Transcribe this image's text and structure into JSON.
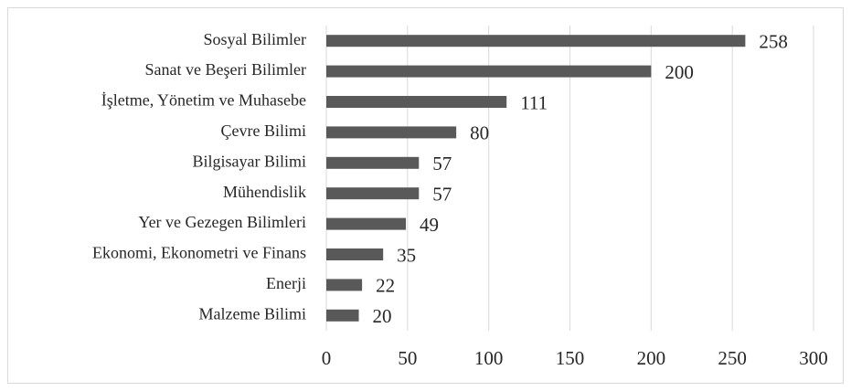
{
  "chart_data": {
    "type": "barh",
    "categories": [
      "Sosyal Bilimler",
      "Sanat ve Beşeri Bilimler",
      "İşletme, Yönetim ve Muhasebe",
      "Çevre Bilimi",
      "Bilgisayar Bilimi",
      "Mühendislik",
      "Yer ve Gezegen Bilimleri",
      "Ekonomi, Ekonometri ve Finans",
      "Enerji",
      "Malzeme Bilimi"
    ],
    "values": [
      258,
      200,
      111,
      80,
      57,
      57,
      49,
      35,
      22,
      20
    ],
    "color": "#595959",
    "xlim": [
      0,
      300
    ],
    "xticks": [
      0,
      50,
      100,
      150,
      200,
      250,
      300
    ],
    "grid": true
  }
}
